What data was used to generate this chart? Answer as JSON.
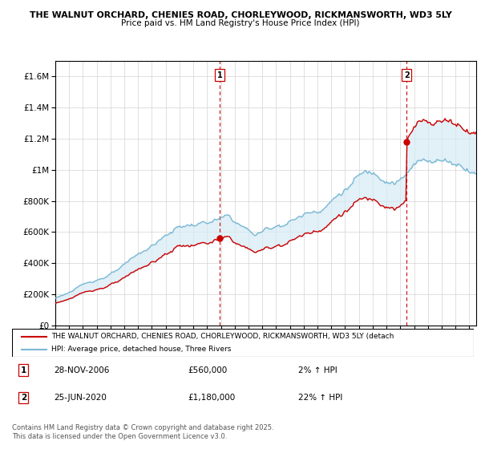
{
  "title_line1": "THE WALNUT ORCHARD, CHENIES ROAD, CHORLEYWOOD, RICKMANSWORTH, WD3 5LY",
  "title_line2": "Price paid vs. HM Land Registry's House Price Index (HPI)",
  "legend_line1": "THE WALNUT ORCHARD, CHENIES ROAD, CHORLEYWOOD, RICKMANSWORTH, WD3 5LY (detach",
  "legend_line2": "HPI: Average price, detached house, Three Rivers",
  "footer": "Contains HM Land Registry data © Crown copyright and database right 2025.\nThis data is licensed under the Open Government Licence v3.0.",
  "annotation1_date": "28-NOV-2006",
  "annotation1_price": "£560,000",
  "annotation1_hpi": "2% ↑ HPI",
  "annotation2_date": "25-JUN-2020",
  "annotation2_price": "£1,180,000",
  "annotation2_hpi": "22% ↑ HPI",
  "property_color": "#cc0000",
  "hpi_color": "#7ab8d4",
  "fill_color": "#d6eaf5",
  "annotation_color": "#cc0000",
  "yticks": [
    0,
    200000,
    400000,
    600000,
    800000,
    1000000,
    1200000,
    1400000,
    1600000
  ],
  "ylim_max": 1700000,
  "xlim_start": 1995.5,
  "xlim_end": 2025.5,
  "sale1_year": 2006.9167,
  "sale1_price": 560000,
  "sale2_year": 2020.4583,
  "sale2_price": 1180000
}
